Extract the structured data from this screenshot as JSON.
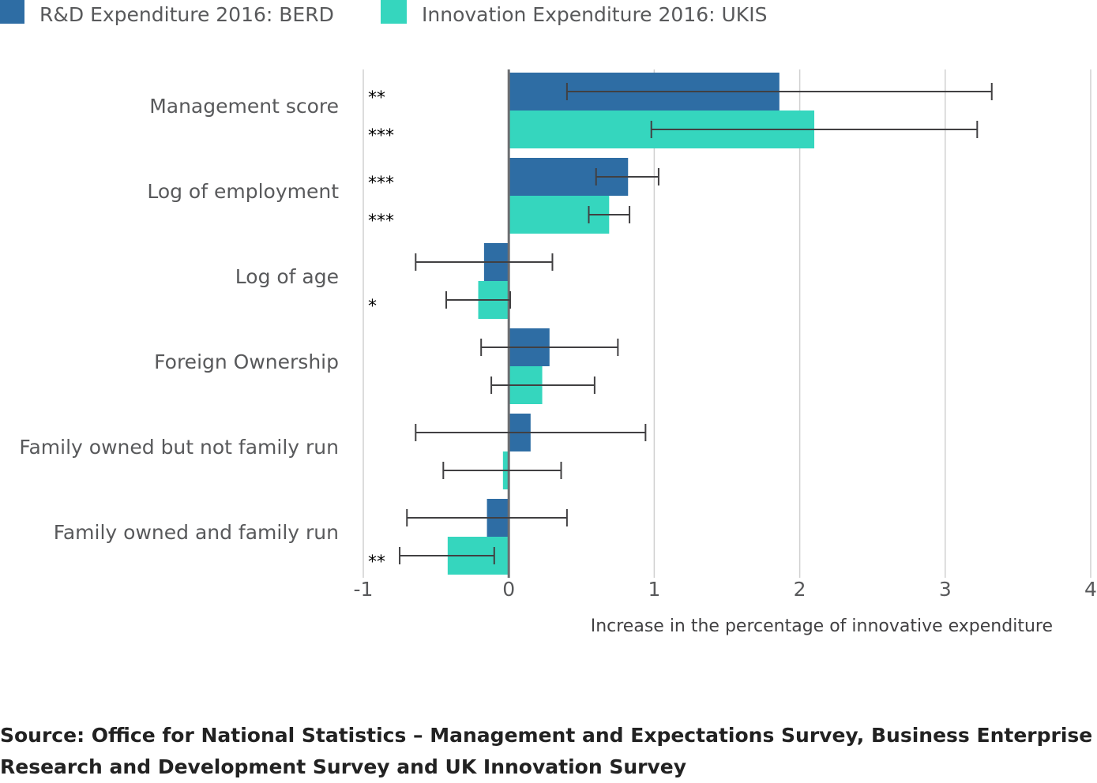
{
  "chart_data": {
    "type": "bar",
    "orientation": "horizontal",
    "xlabel": "Increase in the percentage of innovative expenditure",
    "xlim": [
      -1,
      4
    ],
    "xticks": [
      "-1",
      "0",
      "1",
      "2",
      "3",
      "4"
    ],
    "grid": true,
    "legend_position": "top-left",
    "categories": [
      "Management score",
      "Log of employment",
      "Log of age",
      "Foreign Ownership",
      "Family owned but not family run",
      "Family owned and family run"
    ],
    "series": [
      {
        "name": "R&D Expenditure 2016: BERD",
        "color": "#2e6da4",
        "values": [
          1.86,
          0.82,
          -0.17,
          0.28,
          0.15,
          -0.15
        ],
        "ci_low": [
          0.4,
          0.6,
          -0.64,
          -0.19,
          -0.64,
          -0.7
        ],
        "ci_high": [
          3.32,
          1.03,
          0.3,
          0.75,
          0.94,
          0.4
        ],
        "significance": [
          "**",
          "***",
          "",
          "",
          "",
          ""
        ]
      },
      {
        "name": "Innovation Expenditure 2016: UKIS",
        "color": "#35d6be",
        "values": [
          2.1,
          0.69,
          -0.21,
          0.23,
          -0.04,
          -0.42
        ],
        "ci_low": [
          0.98,
          0.55,
          -0.43,
          -0.12,
          -0.45,
          -0.75
        ],
        "ci_high": [
          3.22,
          0.83,
          0.01,
          0.59,
          0.36,
          -0.1
        ],
        "significance": [
          "***",
          "***",
          "*",
          "",
          "",
          "**"
        ]
      }
    ]
  },
  "source": "Source: Office for National Statistics – Management and Expectations Survey, Business Enterprise Research and Development Survey and UK Innovation Survey"
}
